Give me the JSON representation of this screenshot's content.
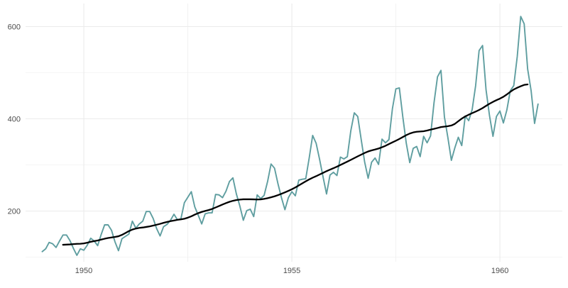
{
  "chart_data": {
    "type": "line",
    "title": "",
    "xlabel": "",
    "ylabel": "",
    "xlim": [
      1948.6,
      1961.5
    ],
    "ylim": [
      90,
      650
    ],
    "x_ticks": [
      1950,
      1955,
      1960
    ],
    "x_tick_labels": [
      "1950",
      "1955",
      "1960"
    ],
    "y_ticks": [
      200,
      400,
      600
    ],
    "y_tick_labels": [
      "200",
      "400",
      "600"
    ],
    "grid": true,
    "legend": "none",
    "colors": {
      "series": "#5f9ea0",
      "trend": "#000000",
      "grid": "#ebebeb",
      "tick_text": "#4d4d4d"
    },
    "series": [
      {
        "start_year": 1949,
        "frequency": 12,
        "values": [
          112,
          118,
          132,
          129,
          121,
          135,
          148,
          148,
          136,
          119,
          104,
          118,
          115,
          126,
          141,
          135,
          125,
          149,
          170,
          170,
          158,
          133,
          114,
          140,
          145,
          150,
          178,
          163,
          172,
          178,
          199,
          199,
          184,
          162,
          146,
          166,
          171,
          180,
          193,
          181,
          183,
          218,
          230,
          242,
          209,
          191,
          172,
          194,
          196,
          196,
          236,
          235,
          229,
          243,
          264,
          272,
          237,
          211,
          180,
          201,
          204,
          188,
          235,
          227,
          234,
          264,
          302,
          293,
          259,
          229,
          203,
          229,
          242,
          233,
          267,
          269,
          270,
          315,
          364,
          347,
          312,
          274,
          237,
          278,
          284,
          277,
          317,
          313,
          318,
          374,
          413,
          405,
          355,
          306,
          271,
          306,
          315,
          301,
          356,
          348,
          355,
          422,
          465,
          467,
          404,
          347,
          305,
          336,
          340,
          318,
          362,
          348,
          363,
          435,
          491,
          505,
          404,
          359,
          310,
          337,
          360,
          342,
          406,
          396,
          420,
          472,
          548,
          559,
          463,
          407,
          362,
          405,
          417,
          391,
          419,
          461,
          472,
          535,
          622,
          606,
          508,
          461,
          390,
          432
        ]
      },
      {
        "start_year": 1949.5,
        "frequency": 12,
        "values": [
          126.8,
          127.2,
          127.6,
          128.3,
          128.8,
          129.0,
          129.8,
          131.3,
          133.3,
          134.8,
          136.2,
          138.1,
          139.9,
          141.5,
          142.7,
          143.8,
          145.3,
          148.3,
          152.3,
          156.5,
          159.8,
          162.0,
          163.4,
          164.3,
          165.5,
          166.8,
          168.5,
          170.3,
          172.2,
          174.4,
          176.3,
          178.0,
          179.5,
          180.9,
          181.9,
          183.3,
          185.6,
          188.6,
          192.2,
          195.4,
          198.1,
          200.2,
          202.1,
          204.5,
          207.7,
          210.9,
          214.2,
          217.2,
          220.0,
          222.2,
          223.9,
          224.8,
          225.5,
          225.6,
          225.5,
          225.3,
          225.0,
          225.3,
          226.3,
          227.9,
          229.8,
          231.9,
          234.5,
          237.4,
          240.5,
          243.8,
          247.2,
          251.2,
          255.6,
          260.0,
          264.4,
          268.6,
          272.3,
          275.6,
          279.2,
          282.8,
          286.5,
          289.8,
          292.9,
          296.3,
          299.9,
          303.5,
          307.2,
          311.0,
          314.8,
          318.6,
          322.3,
          326.0,
          329.2,
          331.5,
          333.4,
          335.6,
          338.4,
          341.5,
          345.3,
          348.9,
          352.5,
          356.4,
          360.5,
          364.6,
          368.1,
          370.5,
          371.9,
          372.5,
          373.1,
          374.6,
          376.5,
          378.2,
          380.1,
          382.1,
          383.1,
          384.0,
          385.5,
          389.0,
          394.8,
          400.5,
          405.2,
          408.9,
          412.3,
          415.6,
          419.2,
          423.3,
          428.1,
          432.7,
          436.8,
          440.5,
          443.8,
          447.8,
          452.9,
          458.5,
          463.7,
          467.4,
          470.6,
          473.6,
          474.6
        ]
      }
    ]
  }
}
